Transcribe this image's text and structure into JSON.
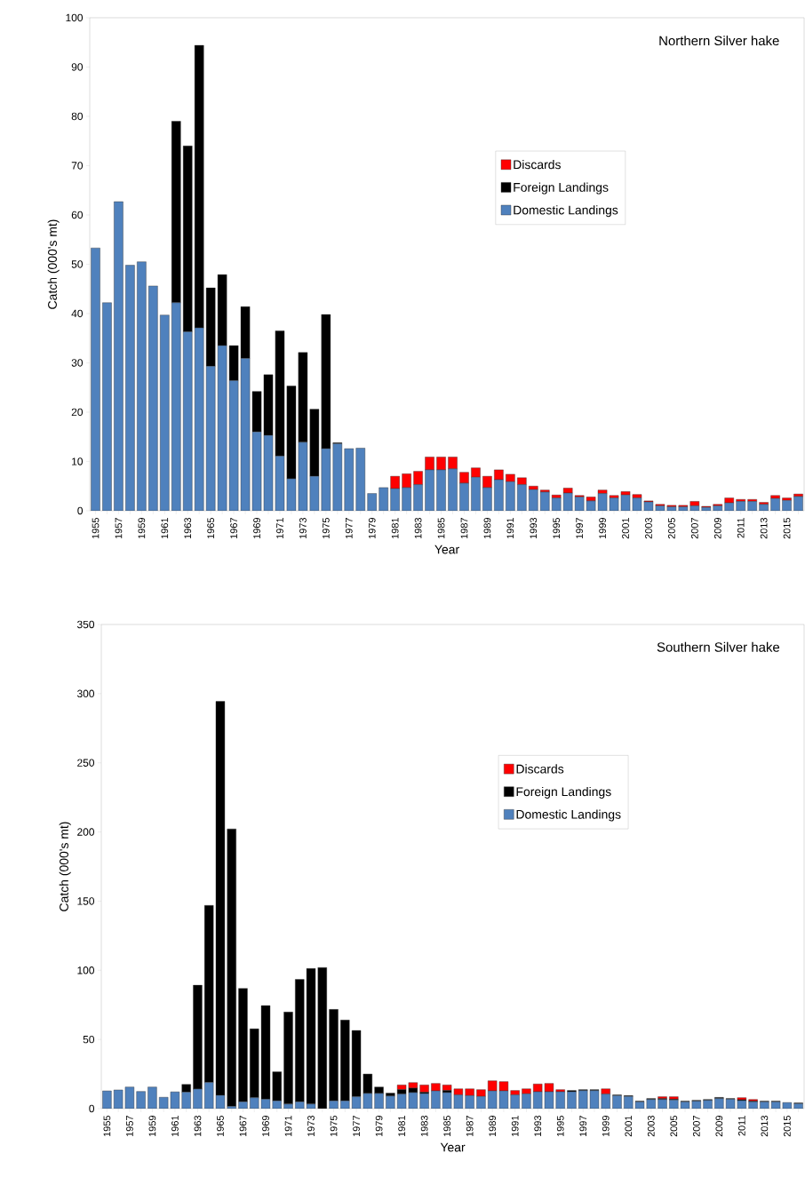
{
  "chart_data": [
    {
      "type": "bar",
      "stacked": true,
      "title": "Northern Silver hake",
      "xlabel": "Year",
      "ylabel": "Catch (000's mt)",
      "legend": "right",
      "grid": false,
      "categories": [
        "1955",
        null,
        "1957",
        null,
        "1959",
        null,
        "1961",
        null,
        "1963",
        null,
        "1965",
        null,
        "1967",
        null,
        "1969",
        null,
        "1971",
        null,
        "1973",
        null,
        "1975",
        null,
        "1977",
        null,
        "1979",
        null,
        "1981",
        null,
        "1983",
        null,
        "1985",
        null,
        "1987",
        null,
        "1989",
        null,
        "1991",
        null,
        "1993",
        null,
        "1995",
        null,
        "1997",
        null,
        "1999",
        null,
        "2001",
        null,
        "2003",
        null,
        "2005",
        null,
        "2007",
        null,
        "2009",
        null,
        "2011",
        null,
        "2013",
        null,
        "2015",
        null
      ],
      "ylim": [
        0,
        100
      ],
      "yticks": [
        0,
        10,
        20,
        30,
        40,
        50,
        60,
        70,
        80,
        90,
        100
      ],
      "series": [
        {
          "name": "Domestic Landings",
          "color": "#4f81bd",
          "values": [
            53.3,
            42.2,
            62.7,
            49.8,
            50.5,
            45.6,
            39.7,
            42.2,
            36.3,
            37.1,
            29.3,
            33.5,
            26.4,
            30.9,
            16.0,
            15.3,
            11.1,
            6.5,
            13.9,
            7.0,
            12.6,
            13.6,
            12.6,
            12.7,
            3.5,
            4.7,
            4.5,
            4.7,
            5.3,
            8.3,
            8.3,
            8.5,
            5.6,
            6.8,
            4.7,
            6.3,
            5.9,
            5.3,
            4.3,
            3.8,
            2.6,
            3.6,
            2.8,
            2.0,
            3.5,
            2.6,
            3.2,
            2.6,
            1.8,
            1.0,
            0.8,
            0.8,
            1.0,
            0.7,
            1.0,
            1.6,
            1.9,
            1.9,
            1.3,
            2.5,
            2.1,
            2.9
          ]
        },
        {
          "name": "Foreign Landings",
          "color": "#000000",
          "values": [
            0,
            0,
            0,
            0,
            0,
            0,
            0,
            36.8,
            37.7,
            57.3,
            15.9,
            14.4,
            7.1,
            10.5,
            8.2,
            12.3,
            25.4,
            18.8,
            18.2,
            13.6,
            27.2,
            0.2,
            0,
            0,
            0,
            0,
            0,
            0,
            0,
            0,
            0,
            0,
            0,
            0,
            0,
            0,
            0,
            0,
            0,
            0,
            0,
            0,
            0,
            0,
            0,
            0,
            0,
            0,
            0,
            0,
            0,
            0,
            0,
            0,
            0,
            0,
            0,
            0,
            0,
            0,
            0,
            0
          ]
        },
        {
          "name": "Discards",
          "color": "#ff0000",
          "values": [
            0,
            0,
            0,
            0,
            0,
            0,
            0,
            0,
            0,
            0,
            0,
            0,
            0,
            0,
            0,
            0,
            0,
            0,
            0,
            0,
            0,
            0,
            0,
            0,
            0,
            0,
            2.5,
            2.8,
            2.7,
            2.6,
            2.6,
            2.4,
            2.2,
            1.9,
            2.3,
            2.0,
            1.5,
            1.4,
            0.7,
            0.4,
            0.6,
            1.0,
            0.3,
            0.8,
            0.7,
            0.5,
            0.7,
            0.7,
            0.2,
            0.3,
            0.3,
            0.3,
            0.9,
            0.2,
            0.3,
            1.0,
            0.4,
            0.4,
            0.4,
            0.6,
            0.5,
            0.5
          ]
        }
      ]
    },
    {
      "type": "bar",
      "stacked": true,
      "title": "Southern Silver hake",
      "xlabel": "Year",
      "ylabel": "Catch (000's mt)",
      "legend": "right",
      "grid": false,
      "categories": [
        "1955",
        null,
        "1957",
        null,
        "1959",
        null,
        "1961",
        null,
        "1963",
        null,
        "1965",
        null,
        "1967",
        null,
        "1969",
        null,
        "1971",
        null,
        "1973",
        null,
        "1975",
        null,
        "1977",
        null,
        "1979",
        null,
        "1981",
        null,
        "1983",
        null,
        "1985",
        null,
        "1987",
        null,
        "1989",
        null,
        "1991",
        null,
        "1993",
        null,
        "1995",
        null,
        "1997",
        null,
        "1999",
        null,
        "2001",
        null,
        "2003",
        null,
        "2005",
        null,
        "2007",
        null,
        "2009",
        null,
        "2011",
        null,
        "2013",
        null,
        "2015",
        null
      ],
      "ylim": [
        0,
        350
      ],
      "yticks": [
        0,
        50,
        100,
        150,
        200,
        250,
        300,
        350
      ],
      "series": [
        {
          "name": "Domestic Landings",
          "color": "#4f81bd",
          "values": [
            12.8,
            13.5,
            15.6,
            12.4,
            15.6,
            8.2,
            12.1,
            11.9,
            14.2,
            18.9,
            9.6,
            1.6,
            4.9,
            7.9,
            6.8,
            5.6,
            3.3,
            4.9,
            3.3,
            0,
            5.6,
            5.6,
            8.6,
            11.0,
            11.0,
            9.1,
            10.5,
            11.6,
            10.9,
            12.8,
            11.6,
            9.9,
            9.4,
            8.8,
            12.8,
            12.8,
            9.9,
            10.7,
            12.2,
            12.2,
            12.2,
            12.2,
            13.0,
            13.0,
            10.5,
            9.4,
            8.8,
            4.9,
            6.6,
            6.6,
            6.2,
            4.9,
            5.4,
            6.0,
            7.3,
            6.8,
            5.8,
            4.9,
            4.9,
            4.9,
            4.4,
            3.6
          ]
        },
        {
          "name": "Foreign Landings",
          "color": "#000000",
          "values": [
            0,
            0,
            0,
            0,
            0,
            0,
            0,
            5.6,
            75.0,
            128.0,
            284.8,
            200.6,
            82.0,
            49.8,
            67.7,
            21.0,
            66.5,
            88.5,
            98.0,
            102.0,
            66.1,
            58.4,
            47.9,
            14.0,
            4.6,
            2.1,
            3.2,
            3.2,
            0.9,
            0,
            1.5,
            0,
            0,
            0,
            0,
            0,
            0,
            0,
            0,
            0,
            0,
            0.9,
            0.7,
            0.7,
            0,
            0.5,
            0.6,
            0.5,
            0.7,
            0.6,
            0.6,
            0.5,
            0.6,
            0.6,
            0.8,
            0.5,
            0.6,
            0.5,
            0.5,
            0.5,
            null,
            0.5
          ]
        },
        {
          "name": "Discards",
          "color": "#ff0000",
          "values": [
            0,
            0,
            0,
            0,
            0,
            0,
            0,
            0,
            0,
            0,
            0,
            0,
            0,
            0,
            0,
            0,
            0,
            0,
            0,
            0,
            0,
            0,
            0,
            0,
            0,
            0,
            3.4,
            4.0,
            5.3,
            5.4,
            4.0,
            4.4,
            4.9,
            4.9,
            7.3,
            6.7,
            3.2,
            3.6,
            5.6,
            6.0,
            1.5,
            0,
            0,
            0,
            3.8,
            0,
            0,
            0,
            0,
            1.4,
            1.8,
            0,
            0,
            0,
            0,
            0,
            1.5,
            1.2,
            0,
            0,
            0,
            0
          ]
        }
      ]
    }
  ]
}
